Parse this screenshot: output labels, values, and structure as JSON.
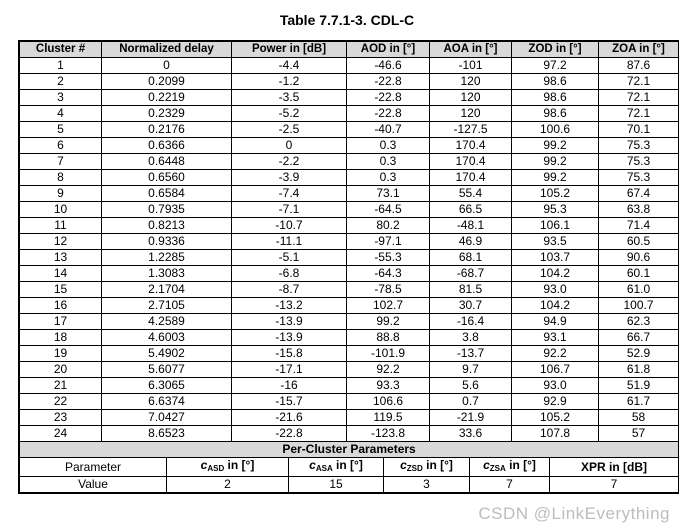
{
  "title": "Table 7.7.1-3. CDL-C",
  "table": {
    "headers": [
      "Cluster #",
      "Normalized delay",
      "Power in [dB]",
      "AOD in [°]",
      "AOA in [°]",
      "ZOD in [°]",
      "ZOA in [°]"
    ],
    "rows": [
      [
        "1",
        "0",
        "-4.4",
        "-46.6",
        "-101",
        "97.2",
        "87.6"
      ],
      [
        "2",
        "0.2099",
        "-1.2",
        "-22.8",
        "120",
        "98.6",
        "72.1"
      ],
      [
        "3",
        "0.2219",
        "-3.5",
        "-22.8",
        "120",
        "98.6",
        "72.1"
      ],
      [
        "4",
        "0.2329",
        "-5.2",
        "-22.8",
        "120",
        "98.6",
        "72.1"
      ],
      [
        "5",
        "0.2176",
        "-2.5",
        "-40.7",
        "-127.5",
        "100.6",
        "70.1"
      ],
      [
        "6",
        "0.6366",
        "0",
        "0.3",
        "170.4",
        "99.2",
        "75.3"
      ],
      [
        "7",
        "0.6448",
        "-2.2",
        "0.3",
        "170.4",
        "99.2",
        "75.3"
      ],
      [
        "8",
        "0.6560",
        "-3.9",
        "0.3",
        "170.4",
        "99.2",
        "75.3"
      ],
      [
        "9",
        "0.6584",
        "-7.4",
        "73.1",
        "55.4",
        "105.2",
        "67.4"
      ],
      [
        "10",
        "0.7935",
        "-7.1",
        "-64.5",
        "66.5",
        "95.3",
        "63.8"
      ],
      [
        "11",
        "0.8213",
        "-10.7",
        "80.2",
        "-48.1",
        "106.1",
        "71.4"
      ],
      [
        "12",
        "0.9336",
        "-11.1",
        "-97.1",
        "46.9",
        "93.5",
        "60.5"
      ],
      [
        "13",
        "1.2285",
        "-5.1",
        "-55.3",
        "68.1",
        "103.7",
        "90.6"
      ],
      [
        "14",
        "1.3083",
        "-6.8",
        "-64.3",
        "-68.7",
        "104.2",
        "60.1"
      ],
      [
        "15",
        "2.1704",
        "-8.7",
        "-78.5",
        "81.5",
        "93.0",
        "61.0"
      ],
      [
        "16",
        "2.7105",
        "-13.2",
        "102.7",
        "30.7",
        "104.2",
        "100.7"
      ],
      [
        "17",
        "4.2589",
        "-13.9",
        "99.2",
        "-16.4",
        "94.9",
        "62.3"
      ],
      [
        "18",
        "4.6003",
        "-13.9",
        "88.8",
        "3.8",
        "93.1",
        "66.7"
      ],
      [
        "19",
        "5.4902",
        "-15.8",
        "-101.9",
        "-13.7",
        "92.2",
        "52.9"
      ],
      [
        "20",
        "5.6077",
        "-17.1",
        "92.2",
        "9.7",
        "106.7",
        "61.8"
      ],
      [
        "21",
        "6.3065",
        "-16",
        "93.3",
        "5.6",
        "93.0",
        "51.9"
      ],
      [
        "22",
        "6.6374",
        "-15.7",
        "106.6",
        "0.7",
        "92.9",
        "61.7"
      ],
      [
        "23",
        "7.0427",
        "-21.6",
        "119.5",
        "-21.9",
        "105.2",
        "58"
      ],
      [
        "24",
        "8.6523",
        "-22.8",
        "-123.8",
        "33.6",
        "107.8",
        "57"
      ]
    ]
  },
  "per_cluster": {
    "section_title": "Per-Cluster Parameters",
    "parameter_label": "Parameter",
    "value_label": "Value",
    "params": [
      {
        "pre": "c",
        "sub": "ASD",
        "post": " in [°]",
        "value": "2"
      },
      {
        "pre": "c",
        "sub": "ASA",
        "post": " in [°]",
        "value": "15"
      },
      {
        "pre": "c",
        "sub": "ZSD",
        "post": " in [°]",
        "value": "3"
      },
      {
        "pre": "c",
        "sub": "ZSA",
        "post": " in [°]",
        "value": "7"
      },
      {
        "pre": "",
        "sub": "",
        "post": "XPR in [dB]",
        "value": "7"
      }
    ]
  },
  "watermark": "CSDN @LinkEverything",
  "colors": {
    "header_bg": "#d9d9d9",
    "border": "#000000",
    "watermark": "#bdbdbd"
  }
}
